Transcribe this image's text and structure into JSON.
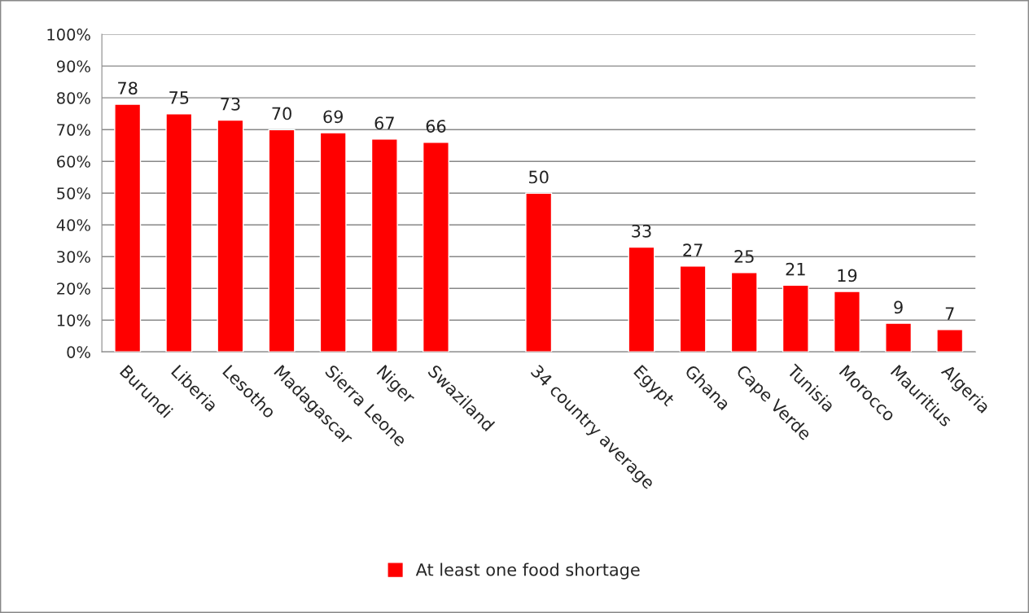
{
  "chart_data": {
    "type": "bar",
    "categories": [
      "Burundi",
      "Liberia",
      "Lesotho",
      "Madagascar",
      "Sierra Leone",
      "Niger",
      "Swaziland",
      null,
      "34 country average",
      null,
      "Egypt",
      "Ghana",
      "Cape Verde",
      "Tunisia",
      "Morocco",
      "Mauritius",
      "Algeria"
    ],
    "series": [
      {
        "name": "At least one food shortage",
        "color": "#ff0000",
        "values": [
          78,
          75,
          73,
          70,
          69,
          67,
          66,
          null,
          50,
          null,
          33,
          27,
          25,
          21,
          19,
          9,
          7
        ]
      }
    ],
    "ylim": [
      0,
      100
    ],
    "yticks": [
      {
        "value": 0,
        "label": "0%"
      },
      {
        "value": 10,
        "label": "10%"
      },
      {
        "value": 20,
        "label": "20%"
      },
      {
        "value": 30,
        "label": "30%"
      },
      {
        "value": 40,
        "label": "40%"
      },
      {
        "value": 50,
        "label": "50%"
      },
      {
        "value": 60,
        "label": "60%"
      },
      {
        "value": 70,
        "label": "70%"
      },
      {
        "value": 80,
        "label": "80%"
      },
      {
        "value": 90,
        "label": "90%"
      },
      {
        "value": 100,
        "label": "100%"
      }
    ],
    "grid": "y",
    "legend": "bottom",
    "data_labels": true
  }
}
